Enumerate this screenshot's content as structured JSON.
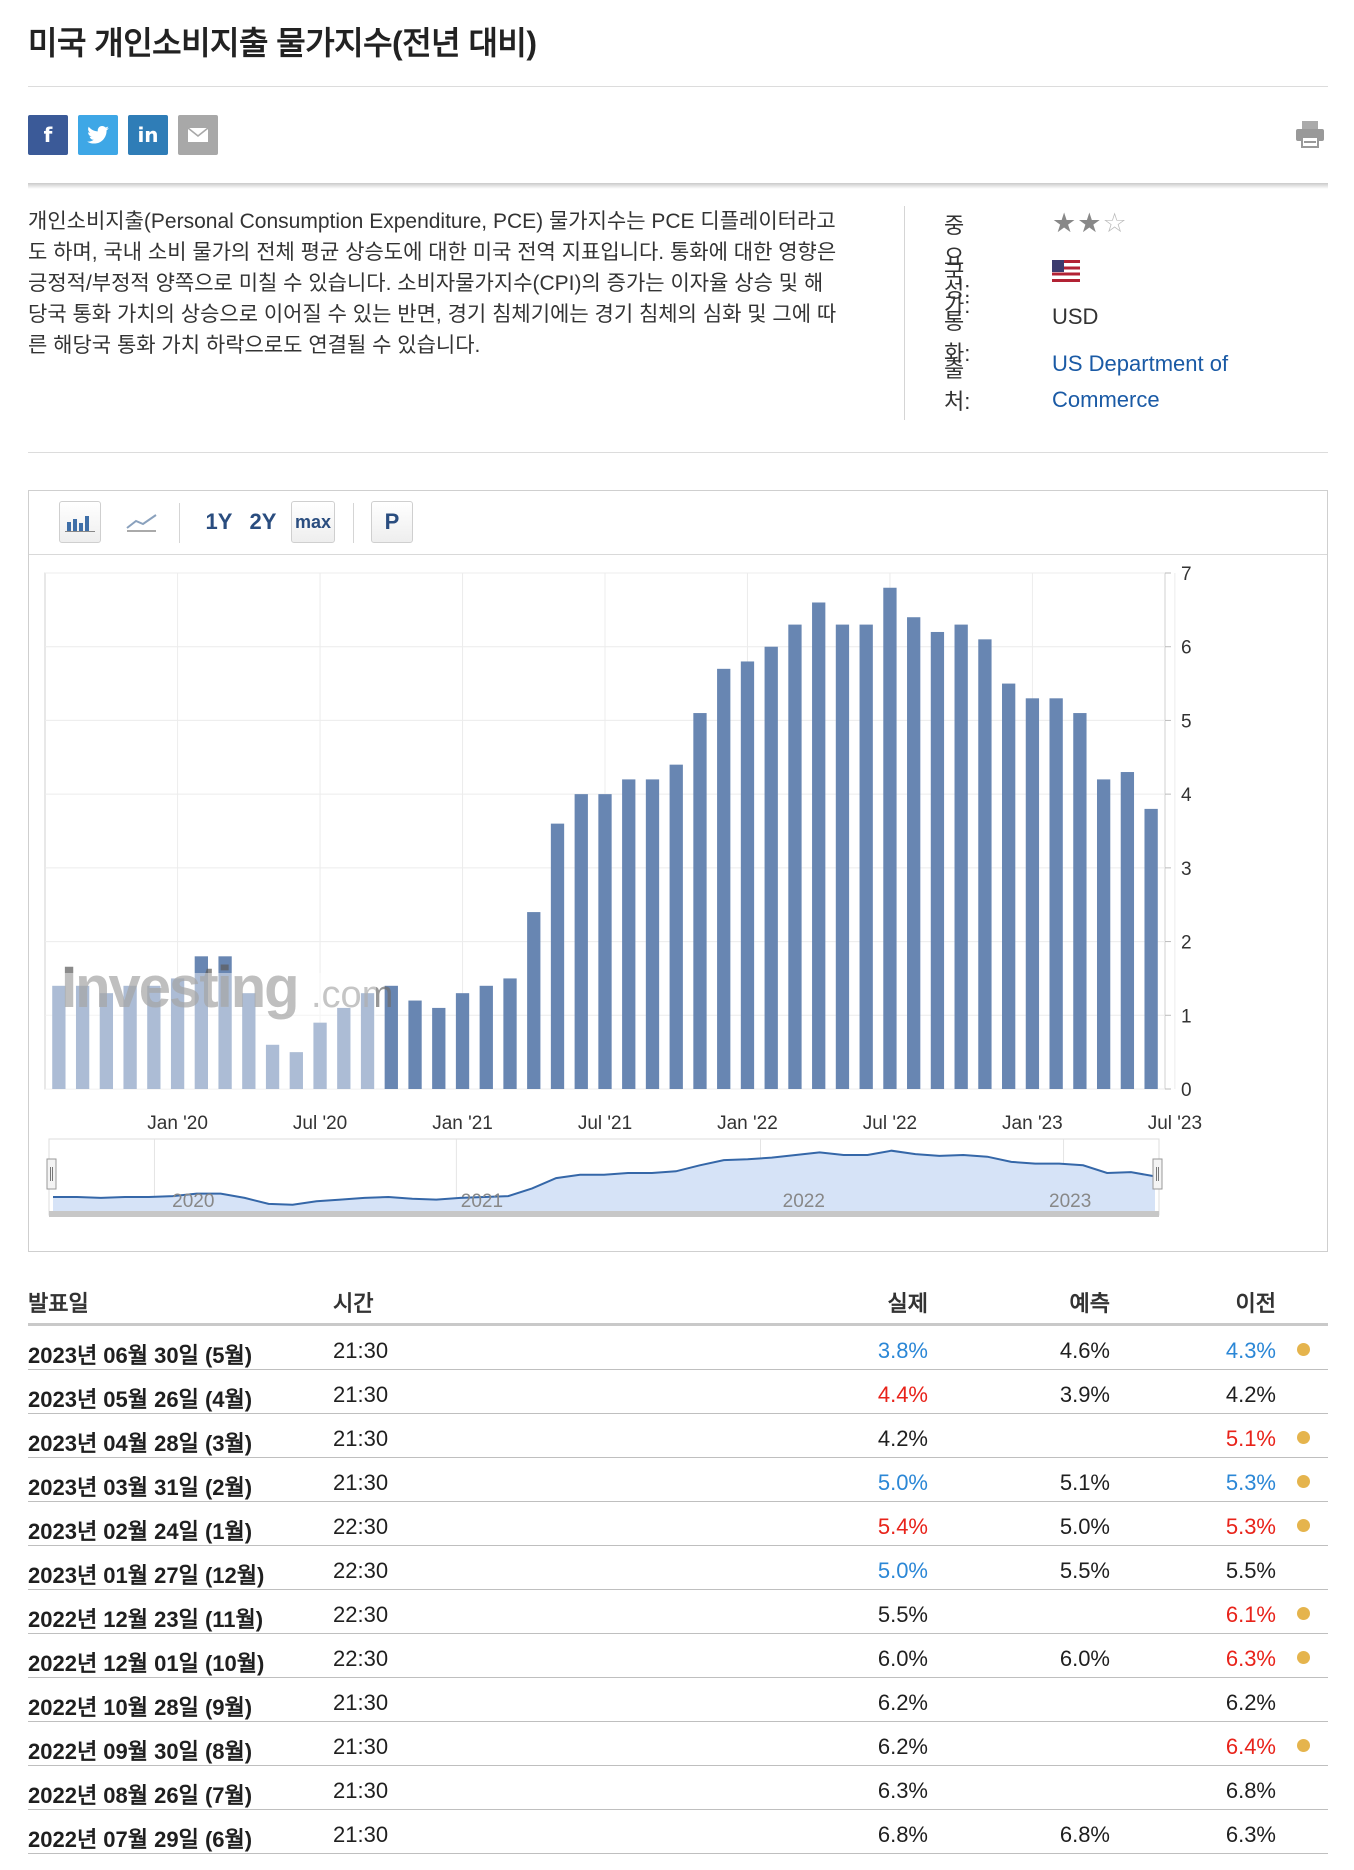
{
  "page": {
    "title": "미국 개인소비지출 물가지수(전년 대비)",
    "description": "개인소비지출(Personal Consumption Expenditure, PCE) 물가지수는 PCE 디플레이터라고도 하며, 국내 소비 물가의 전체 평균 상승도에 대한 미국 전역 지표입니다. 통화에 대한 영향은 긍정적/부정적 양쪽으로 미칠 수 있습니다. 소비자물가지수(CPI)의 증가는 이자율 상승 및 해당국 통화 가치의 상승으로 이어질 수 있는 반면, 경기 침체기에는 경기 침체의 심화 및 그에 따른 해당국 통화 가치 하락으로도 연결될 수 있습니다."
  },
  "share": {
    "facebook": "f",
    "linkedin": "in"
  },
  "meta": {
    "importance_label": "중요성:",
    "importance": 2,
    "importance_max": 3,
    "country_label": "국가:",
    "currency_label": "통화:",
    "currency": "USD",
    "source_label": "출처:",
    "source_line1": "US Department of",
    "source_line2": "Commerce"
  },
  "toolbar": {
    "r1": "1Y",
    "r2": "2Y",
    "rmax": "max",
    "p": "P"
  },
  "watermark": {
    "main": "Investing",
    "suffix": ".com"
  },
  "chart_data": {
    "type": "bar",
    "ylim": [
      0,
      7
    ],
    "yticks": [
      "0",
      "1",
      "2",
      "3",
      "4",
      "5",
      "6",
      "7"
    ],
    "xticks": [
      {
        "label": "Jan '20",
        "index": 5
      },
      {
        "label": "Jul '20",
        "index": 11
      },
      {
        "label": "Jan '21",
        "index": 17
      },
      {
        "label": "Jul '21",
        "index": 23
      },
      {
        "label": "Jan '22",
        "index": 29
      },
      {
        "label": "Jul '22",
        "index": 35
      },
      {
        "label": "Jan '23",
        "index": 41
      },
      {
        "label": "Jul '23",
        "index": 47
      }
    ],
    "values": [
      1.4,
      1.4,
      1.3,
      1.4,
      1.4,
      1.5,
      1.8,
      1.8,
      1.3,
      0.6,
      0.5,
      0.9,
      1.1,
      1.3,
      1.4,
      1.2,
      1.1,
      1.3,
      1.4,
      1.5,
      2.4,
      3.6,
      4.0,
      4.0,
      4.2,
      4.2,
      4.4,
      5.1,
      5.7,
      5.8,
      6.0,
      6.3,
      6.6,
      6.3,
      6.3,
      6.8,
      6.4,
      6.2,
      6.3,
      6.1,
      5.5,
      5.3,
      5.3,
      5.1,
      4.2,
      4.3,
      3.8
    ],
    "navigator_labels": [
      "2020",
      "2021",
      "2022",
      "2023"
    ]
  },
  "table": {
    "headers": {
      "date": "발표일",
      "time": "시간",
      "actual": "실제",
      "forecast": "예측",
      "previous": "이전"
    },
    "rows": [
      {
        "date": "2023년 06월 30일 (5월)",
        "time": "21:30",
        "actual": "3.8%",
        "actual_dir": "down",
        "forecast": "4.6%",
        "previous": "4.3%",
        "previous_dir": "down",
        "revised": true
      },
      {
        "date": "2023년 05월 26일 (4월)",
        "time": "21:30",
        "actual": "4.4%",
        "actual_dir": "up",
        "forecast": "3.9%",
        "previous": "4.2%",
        "previous_dir": "",
        "revised": false
      },
      {
        "date": "2023년 04월 28일 (3월)",
        "time": "21:30",
        "actual": "4.2%",
        "actual_dir": "",
        "forecast": "",
        "previous": "5.1%",
        "previous_dir": "up",
        "revised": true
      },
      {
        "date": "2023년 03월 31일 (2월)",
        "time": "21:30",
        "actual": "5.0%",
        "actual_dir": "down",
        "forecast": "5.1%",
        "previous": "5.3%",
        "previous_dir": "down",
        "revised": true
      },
      {
        "date": "2023년 02월 24일 (1월)",
        "time": "22:30",
        "actual": "5.4%",
        "actual_dir": "up",
        "forecast": "5.0%",
        "previous": "5.3%",
        "previous_dir": "up",
        "revised": true
      },
      {
        "date": "2023년 01월 27일 (12월)",
        "time": "22:30",
        "actual": "5.0%",
        "actual_dir": "down",
        "forecast": "5.5%",
        "previous": "5.5%",
        "previous_dir": "",
        "revised": false
      },
      {
        "date": "2022년 12월 23일 (11월)",
        "time": "22:30",
        "actual": "5.5%",
        "actual_dir": "",
        "forecast": "",
        "previous": "6.1%",
        "previous_dir": "up",
        "revised": true
      },
      {
        "date": "2022년 12월 01일 (10월)",
        "time": "22:30",
        "actual": "6.0%",
        "actual_dir": "",
        "forecast": "6.0%",
        "previous": "6.3%",
        "previous_dir": "up",
        "revised": true
      },
      {
        "date": "2022년 10월 28일 (9월)",
        "time": "21:30",
        "actual": "6.2%",
        "actual_dir": "",
        "forecast": "",
        "previous": "6.2%",
        "previous_dir": "",
        "revised": false
      },
      {
        "date": "2022년 09월 30일 (8월)",
        "time": "21:30",
        "actual": "6.2%",
        "actual_dir": "",
        "forecast": "",
        "previous": "6.4%",
        "previous_dir": "up",
        "revised": true
      },
      {
        "date": "2022년 08월 26일 (7월)",
        "time": "21:30",
        "actual": "6.3%",
        "actual_dir": "",
        "forecast": "",
        "previous": "6.8%",
        "previous_dir": "",
        "revised": false
      },
      {
        "date": "2022년 07월 29일 (6월)",
        "time": "21:30",
        "actual": "6.8%",
        "actual_dir": "",
        "forecast": "6.8%",
        "previous": "6.3%",
        "previous_dir": "",
        "revised": false
      }
    ]
  }
}
